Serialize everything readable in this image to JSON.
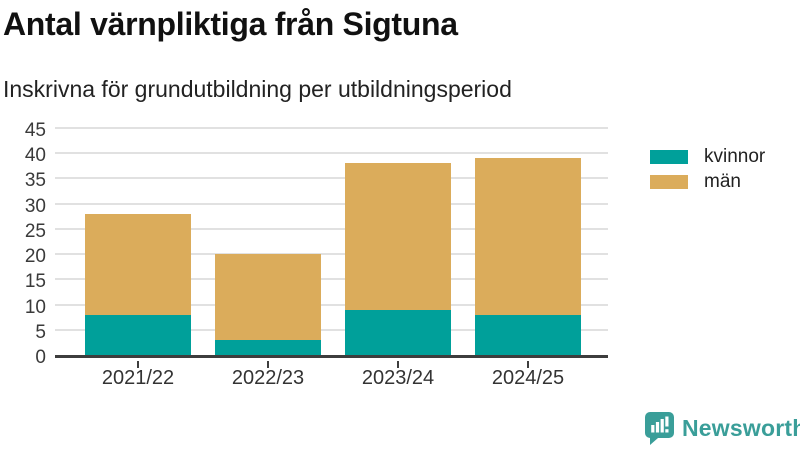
{
  "header": {
    "title": "Antal värnpliktiga från Sigtuna",
    "subtitle": "Inskrivna för grundutbildning per utbildningsperiod"
  },
  "chart_data": {
    "type": "bar",
    "stacked": true,
    "title": "Antal värnpliktiga från Sigtuna",
    "subtitle": "Inskrivna för grundutbildning per utbildningsperiod",
    "categories": [
      "2021/22",
      "2022/23",
      "2023/24",
      "2024/25"
    ],
    "series": [
      {
        "name": "kvinnor",
        "color": "#00a09a",
        "values": [
          8,
          3,
          9,
          8
        ]
      },
      {
        "name": "män",
        "color": "#dbac5b",
        "values": [
          20,
          17,
          29,
          31
        ]
      }
    ],
    "stack_totals": [
      28,
      20,
      38,
      39
    ],
    "xlabel": "",
    "ylabel": "",
    "ylim": [
      0,
      45
    ],
    "yticks": [
      0,
      5,
      10,
      15,
      20,
      25,
      30,
      35,
      40,
      45
    ],
    "grid": true,
    "legend_position": "right"
  },
  "colors": {
    "kvinnor": "#00a09a",
    "man": "#dbac5b",
    "gridline": "#e1e1e1",
    "axis_line": "#3d3d3d",
    "title_text": "#111111",
    "tick_text": "#3a3a3a",
    "brand_teal": "#3a9e99"
  },
  "branding": {
    "logo_text": "Newsworthy"
  }
}
